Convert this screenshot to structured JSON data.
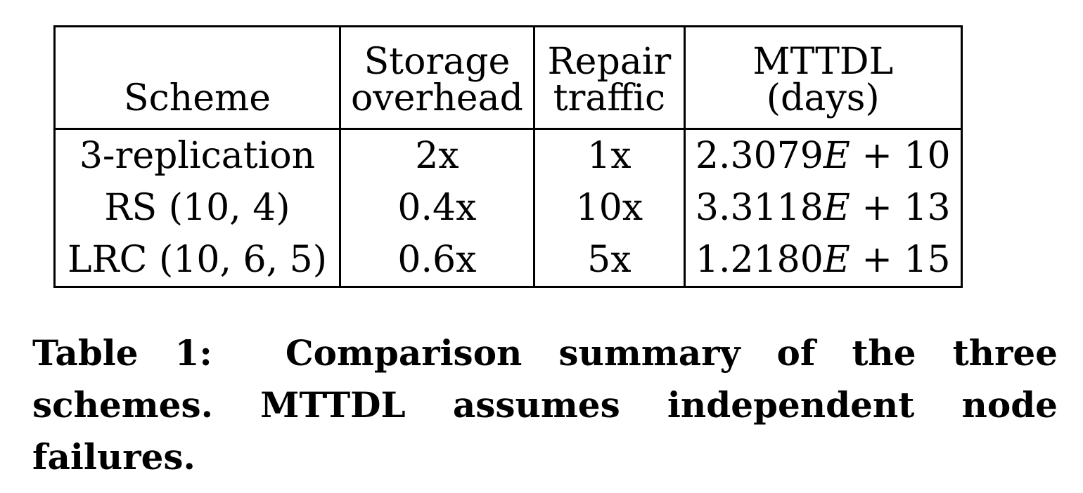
{
  "table": {
    "headers": {
      "scheme": [
        "Scheme"
      ],
      "storage": [
        "Storage",
        "overhead"
      ],
      "repair": [
        "Repair",
        "traffic"
      ],
      "mttdl": [
        "MTTDL",
        "(days)"
      ]
    },
    "rows": [
      {
        "scheme": "3-replication",
        "storage": "2x",
        "repair": "1x",
        "mttdl_mantissa": "2.3079",
        "mttdl_e": "E",
        "mttdl_exp": " + 10"
      },
      {
        "scheme": "RS (10, 4)",
        "storage": "0.4x",
        "repair": "10x",
        "mttdl_mantissa": "3.3118",
        "mttdl_e": "E",
        "mttdl_exp": " + 13"
      },
      {
        "scheme": "LRC (10, 6, 5)",
        "storage": "0.6x",
        "repair": "5x",
        "mttdl_mantissa": "1.2180",
        "mttdl_e": "E",
        "mttdl_exp": " + 15"
      }
    ]
  },
  "caption": {
    "label": "Table 1:",
    "text": "Comparison summary of the three schemes. MTTDL assumes independent node failures."
  }
}
